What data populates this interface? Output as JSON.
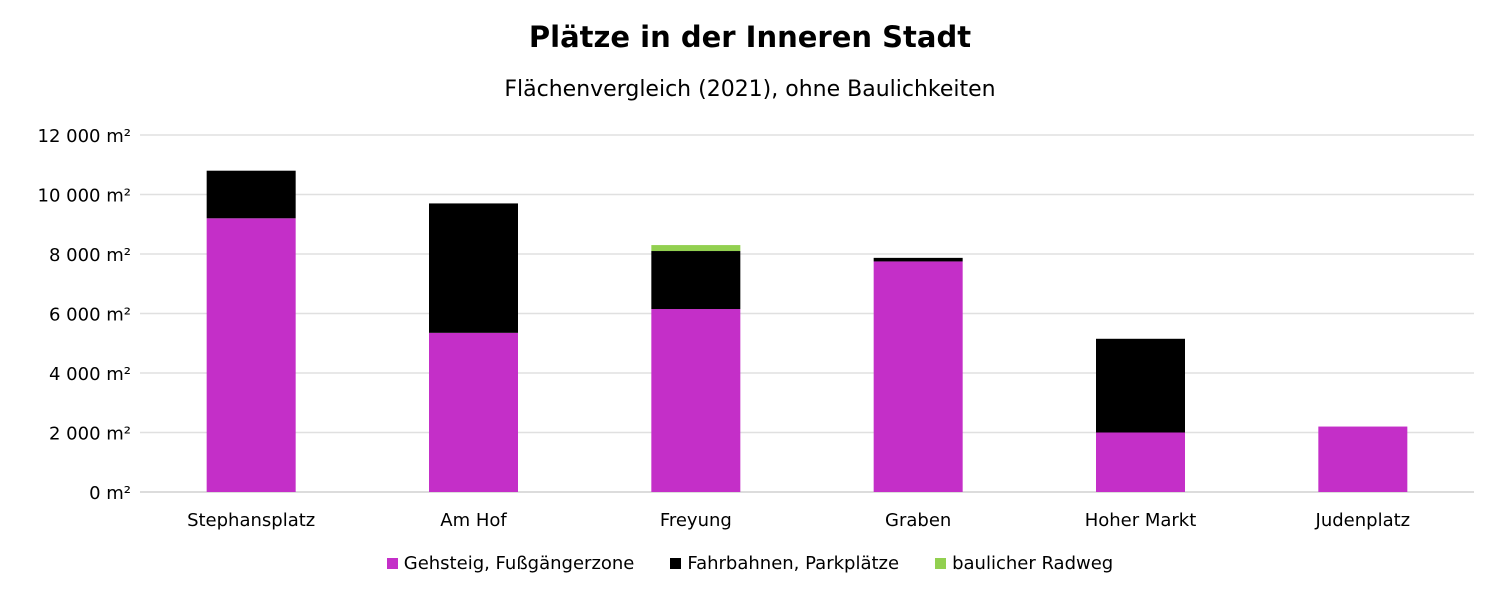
{
  "chart_data": {
    "type": "bar",
    "stacked": true,
    "title": "Plätze in der Inneren Stadt",
    "subtitle": "Flächenvergleich (2021), ohne Baulichkeiten",
    "categories": [
      "Stephansplatz",
      "Am Hof",
      "Freyung",
      "Graben",
      "Hoher Markt",
      "Judenplatz"
    ],
    "series": [
      {
        "name": "Gehsteig, Fußgängerzone",
        "color": "#c42fc8",
        "values": [
          9200,
          5350,
          6150,
          7750,
          2000,
          2200
        ]
      },
      {
        "name": "Fahrbahnen, Parkplätze",
        "color": "#000000",
        "values": [
          1600,
          4350,
          1950,
          120,
          3150,
          0
        ]
      },
      {
        "name": "baulicher Radweg",
        "color": "#92d050",
        "values": [
          0,
          0,
          200,
          0,
          0,
          0
        ]
      }
    ],
    "ylim": [
      0,
      12000
    ],
    "yticks": [
      0,
      2000,
      4000,
      6000,
      8000,
      10000,
      12000
    ],
    "ytick_labels": [
      "0 m²",
      "2 000 m²",
      "4 000 m²",
      "6 000 m²",
      "8 000 m²",
      "10 000 m²",
      "12 000 m²"
    ],
    "grid": true,
    "legend_position": "bottom"
  }
}
